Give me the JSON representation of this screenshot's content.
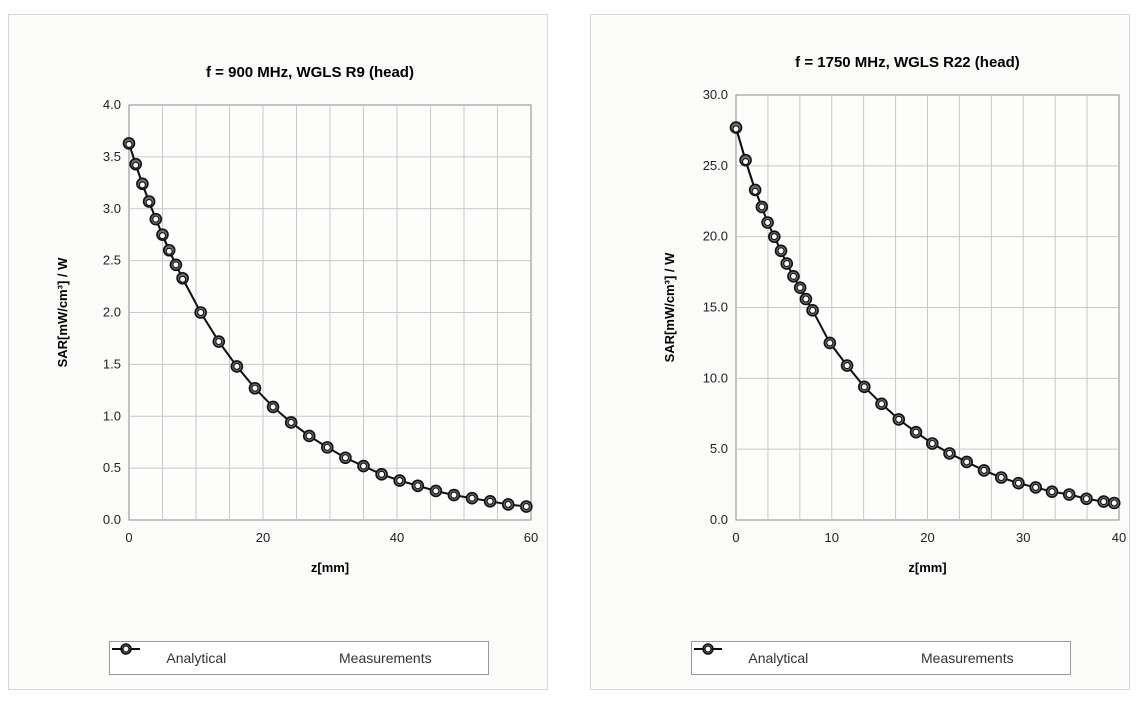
{
  "chart_data": [
    {
      "type": "line",
      "title": "f = 900 MHz, WGLS R9 (head)",
      "xlabel": "z[mm]",
      "ylabel": "SAR[mW/cm³] / W",
      "xlim": [
        0,
        60
      ],
      "ylim": [
        0,
        4
      ],
      "xticks": [
        "0",
        "20",
        "40",
        "60"
      ],
      "yticks": [
        "0.0",
        "0.5",
        "1.0",
        "1.5",
        "2.0",
        "2.5",
        "3.0",
        "3.5",
        "4.0"
      ],
      "grid": true,
      "legend_position": "bottom",
      "series": [
        {
          "name": "Analytical",
          "marker": "circle-filled",
          "x": [
            0,
            1,
            2,
            3,
            4,
            5,
            6,
            7,
            8,
            10.7,
            13.4,
            16.1,
            18.8,
            21.5,
            24.2,
            26.9,
            29.6,
            32.3,
            35,
            37.7,
            40.4,
            43.1,
            45.8,
            48.5,
            51.2,
            53.9,
            56.6,
            59.3
          ],
          "y": [
            3.63,
            3.43,
            3.24,
            3.07,
            2.9,
            2.75,
            2.6,
            2.46,
            2.33,
            2.0,
            1.72,
            1.48,
            1.27,
            1.09,
            0.94,
            0.81,
            0.7,
            0.6,
            0.52,
            0.44,
            0.38,
            0.33,
            0.28,
            0.24,
            0.21,
            0.18,
            0.15,
            0.13
          ]
        },
        {
          "name": "Measurements",
          "marker": "circle-open",
          "x": [
            0,
            1,
            2,
            3,
            4,
            5,
            6,
            7,
            8,
            10.7,
            13.4,
            16.1,
            18.8,
            21.5,
            24.2,
            26.9,
            29.6,
            32.3,
            35,
            37.7,
            40.4,
            43.1,
            45.8,
            48.5,
            51.2,
            53.9,
            56.6,
            59.3
          ],
          "y": [
            3.62,
            3.42,
            3.23,
            3.06,
            2.9,
            2.74,
            2.59,
            2.46,
            2.32,
            2.0,
            1.72,
            1.48,
            1.27,
            1.09,
            0.94,
            0.81,
            0.7,
            0.6,
            0.52,
            0.44,
            0.38,
            0.33,
            0.28,
            0.24,
            0.21,
            0.18,
            0.15,
            0.13
          ]
        }
      ]
    },
    {
      "type": "line",
      "title": "f = 1750 MHz, WGLS R22 (head)",
      "xlabel": "z[mm]",
      "ylabel": "SAR[mW/cm³] / W",
      "xlim": [
        0,
        40
      ],
      "ylim": [
        0,
        30
      ],
      "xticks": [
        "0",
        "10",
        "20",
        "30",
        "40"
      ],
      "yticks": [
        "0.0",
        "5.0",
        "10.0",
        "15.0",
        "20.0",
        "25.0",
        "30.0"
      ],
      "grid": true,
      "legend_position": "bottom",
      "series": [
        {
          "name": "Analytical",
          "marker": "circle-filled",
          "x": [
            0,
            1,
            2,
            2.7,
            3.3,
            4,
            4.7,
            5.3,
            6,
            6.7,
            7.3,
            8,
            9.8,
            11.6,
            13.4,
            15.2,
            17,
            18.8,
            20.5,
            22.3,
            24.1,
            25.9,
            27.7,
            29.5,
            31.3,
            33,
            34.8,
            36.6,
            38.4,
            39.5
          ],
          "y": [
            27.7,
            25.4,
            23.3,
            22.1,
            21.0,
            20.0,
            19.0,
            18.1,
            17.2,
            16.4,
            15.6,
            14.8,
            12.5,
            10.9,
            9.4,
            8.2,
            7.1,
            6.2,
            5.4,
            4.7,
            4.1,
            3.5,
            3.0,
            2.6,
            2.3,
            2.0,
            1.8,
            1.5,
            1.3,
            1.2
          ]
        },
        {
          "name": "Measurements",
          "marker": "circle-open",
          "x": [
            0,
            1,
            2,
            2.7,
            3.3,
            4,
            4.7,
            5.3,
            6,
            6.7,
            7.3,
            8,
            9.8,
            11.6,
            13.4,
            15.2,
            17,
            18.8,
            20.5,
            22.3,
            24.1,
            25.9,
            27.7,
            29.5,
            31.3,
            33,
            34.8,
            36.6,
            38.4,
            39.5
          ],
          "y": [
            27.6,
            25.3,
            23.2,
            22.1,
            21.0,
            20.0,
            19.0,
            18.1,
            17.2,
            16.4,
            15.6,
            14.8,
            12.5,
            10.9,
            9.4,
            8.2,
            7.1,
            6.2,
            5.4,
            4.7,
            4.1,
            3.5,
            3.0,
            2.6,
            2.3,
            2.0,
            1.8,
            1.5,
            1.3,
            1.2
          ]
        }
      ]
    }
  ],
  "style": {
    "line_color": "#111111",
    "marker_fill_analytical": "#6e6e6e",
    "marker_fill_measurements": "#ffffff",
    "grid_color": "#c8c8c8",
    "axis_color": "#8a8a8a"
  }
}
